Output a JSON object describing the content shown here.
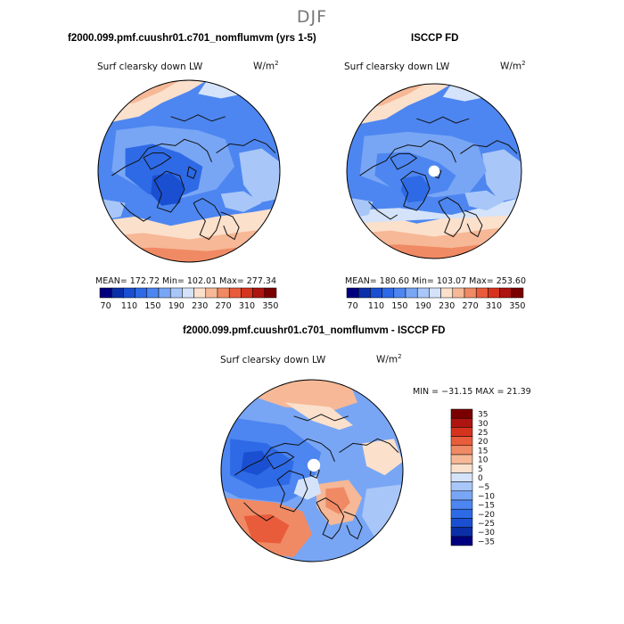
{
  "season": "DJF",
  "colors": {
    "scale_abs": [
      "#00007f",
      "#0b2fa8",
      "#1a4fd1",
      "#2e6ae6",
      "#4d86f0",
      "#78a6f5",
      "#a8c6f8",
      "#d4e3fa",
      "#fbe0cc",
      "#f6b896",
      "#f08a64",
      "#e95c3b",
      "#d6331e",
      "#ae1410",
      "#7a0000"
    ],
    "scale_diff": [
      "#00007f",
      "#0b2fa8",
      "#1a4fd1",
      "#2e6ae6",
      "#4d86f0",
      "#78a6f5",
      "#a8c6f8",
      "#d4e3fa",
      "#fbe0cc",
      "#f6b896",
      "#f08a64",
      "#e95c3b",
      "#d6331e",
      "#ae1410",
      "#7a0000"
    ],
    "land": "#111111"
  },
  "panels": [
    {
      "title": "f2000.099.pmf.cuushr01.c701_nomflumvm (yrs 1-5)",
      "field_label": "Surf clearsky down LW",
      "units": "W/m",
      "units_exp": "2",
      "stats": "MEAN= 172.72   Min= 102.01   Max= 277.34",
      "ticks": [
        "70",
        "110",
        "150",
        "190",
        "230",
        "270",
        "310",
        "350"
      ]
    },
    {
      "title": "ISCCP FD",
      "field_label": "Surf clearsky down LW",
      "units": "W/m",
      "units_exp": "2",
      "stats": "MEAN= 180.60   Min= 103.07   Max= 253.60",
      "ticks": [
        "70",
        "110",
        "150",
        "190",
        "230",
        "270",
        "310",
        "350"
      ]
    }
  ],
  "diff_panel": {
    "title": "f2000.099.pmf.cuushr01.c701_nomflumvm - ISCCP FD",
    "field_label": "Surf clearsky down LW",
    "units": "W/m",
    "units_exp": "2",
    "minmax": "MIN = −31.15  MAX =   21.39",
    "legend_labels": [
      "35",
      "30",
      "25",
      "20",
      "15",
      "10",
      "5",
      "0",
      "−5",
      "−10",
      "−15",
      "−20",
      "−25",
      "−30",
      "−35"
    ]
  },
  "chart_data": [
    {
      "type": "heatmap",
      "projection": "north polar stereographic",
      "title": "f2000.099.pmf.cuushr01.c701_nomflumvm (yrs 1-5)",
      "variable": "Surf clearsky down LW",
      "units": "W/m2",
      "colorbar_levels": [
        70,
        90,
        110,
        130,
        150,
        170,
        190,
        210,
        230,
        250,
        270,
        290,
        310,
        330,
        350
      ],
      "mean": 172.72,
      "min": 102.01,
      "max": 277.34
    },
    {
      "type": "heatmap",
      "projection": "north polar stereographic",
      "title": "ISCCP FD",
      "variable": "Surf clearsky down LW",
      "units": "W/m2",
      "colorbar_levels": [
        70,
        90,
        110,
        130,
        150,
        170,
        190,
        210,
        230,
        250,
        270,
        290,
        310,
        330,
        350
      ],
      "mean": 180.6,
      "min": 103.07,
      "max": 253.6
    },
    {
      "type": "heatmap",
      "projection": "north polar stereographic",
      "title": "f2000.099.pmf.cuushr01.c701_nomflumvm - ISCCP FD",
      "variable": "Surf clearsky down LW difference",
      "units": "W/m2",
      "colorbar_levels": [
        -35,
        -30,
        -25,
        -20,
        -15,
        -10,
        -5,
        0,
        5,
        10,
        15,
        20,
        25,
        30,
        35
      ],
      "min": -31.15,
      "max": 21.39
    }
  ]
}
